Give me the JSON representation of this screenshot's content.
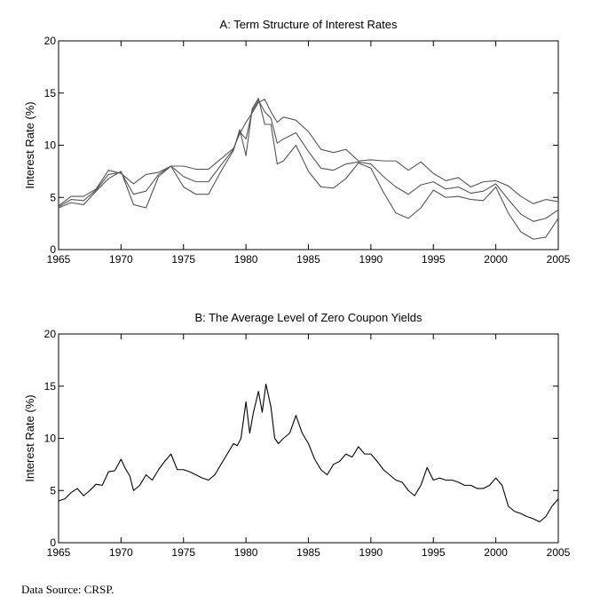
{
  "source_note": "Data Source:  CRSP.",
  "chart_data": [
    {
      "id": "A",
      "type": "line",
      "title": "A: Term Structure of Interest Rates",
      "xlabel": "",
      "ylabel": "Interest Rate (%)",
      "xlim": [
        1965,
        2005
      ],
      "ylim": [
        0,
        20
      ],
      "x_ticks": [
        1965,
        1970,
        1975,
        1980,
        1985,
        1990,
        1995,
        2000,
        2005
      ],
      "y_ticks": [
        0,
        5,
        10,
        15,
        20
      ],
      "grid": false,
      "legend": "none",
      "line_color": "#555555",
      "series": [
        {
          "x": [
            1965,
            1966,
            1967,
            1968,
            1969,
            1970,
            1971,
            1972,
            1973,
            1974,
            1975,
            1976,
            1977,
            1978,
            1979,
            1979.5,
            1980,
            1980.5,
            1981,
            1981.5,
            1982,
            1982.5,
            1983,
            1984,
            1985,
            1986,
            1987,
            1988,
            1989,
            1990,
            1991,
            1992,
            1993,
            1994,
            1995,
            1996,
            1997,
            1998,
            1999,
            2000,
            2001,
            2002,
            2003,
            2004,
            2005
          ],
          "y": [
            4.0,
            4.5,
            4.3,
            5.6,
            6.8,
            7.5,
            4.3,
            4.0,
            7.0,
            8.0,
            6.0,
            5.3,
            5.3,
            7.5,
            9.5,
            11.5,
            9.0,
            13.5,
            14.5,
            12.0,
            12.0,
            8.2,
            8.5,
            10.0,
            7.5,
            6.0,
            5.9,
            6.8,
            8.3,
            7.8,
            5.5,
            3.5,
            3.0,
            4.0,
            5.7,
            5.0,
            5.1,
            4.8,
            4.7,
            6.0,
            3.5,
            1.7,
            1.0,
            1.2,
            3.0
          ]
        },
        {
          "x": [
            1965,
            1966,
            1967,
            1968,
            1969,
            1970,
            1971,
            1972,
            1973,
            1974,
            1975,
            1976,
            1977,
            1978,
            1979,
            1979.5,
            1980,
            1980.5,
            1981,
            1981.5,
            1982,
            1982.5,
            1983,
            1984,
            1985,
            1986,
            1987,
            1988,
            1989,
            1990,
            1991,
            1992,
            1993,
            1994,
            1995,
            1996,
            1997,
            1998,
            1999,
            2000,
            2001,
            2002,
            2003,
            2004,
            2005
          ],
          "y": [
            4.1,
            4.8,
            4.7,
            5.7,
            7.2,
            7.4,
            5.3,
            5.6,
            7.2,
            8.0,
            7.0,
            6.5,
            6.5,
            8.1,
            9.6,
            11.3,
            10.6,
            13.3,
            14.3,
            13.2,
            12.6,
            10.2,
            10.6,
            11.2,
            9.4,
            7.8,
            7.6,
            8.2,
            8.4,
            8.2,
            7.0,
            6.0,
            5.3,
            6.2,
            6.5,
            5.8,
            6.0,
            5.4,
            5.6,
            6.3,
            4.8,
            3.4,
            2.7,
            3.0,
            3.8
          ]
        },
        {
          "x": [
            1965,
            1966,
            1967,
            1968,
            1969,
            1970,
            1971,
            1972,
            1973,
            1974,
            1975,
            1976,
            1977,
            1978,
            1979,
            1979.5,
            1980,
            1980.5,
            1981,
            1981.5,
            1982,
            1982.5,
            1983,
            1984,
            1985,
            1986,
            1987,
            1988,
            1989,
            1990,
            1991,
            1992,
            1993,
            1994,
            1995,
            1996,
            1997,
            1998,
            1999,
            2000,
            2001,
            2002,
            2003,
            2004,
            2005
          ],
          "y": [
            4.2,
            5.1,
            5.1,
            5.8,
            7.6,
            7.3,
            6.3,
            7.2,
            7.4,
            8.0,
            8.0,
            7.7,
            7.7,
            8.7,
            9.7,
            11.1,
            12.2,
            13.1,
            14.1,
            14.4,
            13.2,
            12.2,
            12.7,
            12.4,
            11.3,
            9.6,
            9.3,
            9.6,
            8.5,
            8.6,
            8.5,
            8.5,
            7.6,
            8.4,
            7.3,
            6.6,
            6.9,
            6.0,
            6.5,
            6.6,
            6.1,
            5.1,
            4.4,
            4.8,
            4.6
          ]
        }
      ]
    },
    {
      "id": "B",
      "type": "line",
      "title": "B: The Average Level of Zero Coupon Yields",
      "xlabel": "",
      "ylabel": "Interest Rate (%)",
      "xlim": [
        1965,
        2005
      ],
      "ylim": [
        0,
        20
      ],
      "x_ticks": [
        1965,
        1970,
        1975,
        1980,
        1985,
        1990,
        1995,
        2000,
        2005
      ],
      "y_ticks": [
        0,
        5,
        10,
        15,
        20
      ],
      "grid": false,
      "legend": "none",
      "line_color": "#000000",
      "series": [
        {
          "x": [
            1965,
            1965.5,
            1966,
            1966.5,
            1967,
            1967.5,
            1968,
            1968.5,
            1969,
            1969.5,
            1970,
            1970.3,
            1970.7,
            1971,
            1971.5,
            1972,
            1972.5,
            1973,
            1973.5,
            1974,
            1974.5,
            1975,
            1975.5,
            1976,
            1976.5,
            1977,
            1977.5,
            1978,
            1978.5,
            1979,
            1979.3,
            1979.6,
            1980,
            1980.3,
            1980.6,
            1981,
            1981.3,
            1981.6,
            1982,
            1982.3,
            1982.6,
            1983,
            1983.5,
            1984,
            1984.5,
            1985,
            1985.5,
            1986,
            1986.5,
            1987,
            1987.5,
            1988,
            1988.5,
            1989,
            1989.5,
            1990,
            1990.5,
            1991,
            1991.5,
            1992,
            1992.5,
            1993,
            1993.5,
            1994,
            1994.5,
            1995,
            1995.5,
            1996,
            1996.5,
            1997,
            1997.5,
            1998,
            1998.5,
            1999,
            1999.5,
            2000,
            2000.5,
            2001,
            2001.5,
            2002,
            2002.5,
            2003,
            2003.5,
            2004,
            2004.5,
            2005
          ],
          "y": [
            4.0,
            4.2,
            4.8,
            5.2,
            4.5,
            5.0,
            5.6,
            5.5,
            6.8,
            6.9,
            8.0,
            7.2,
            6.4,
            5.0,
            5.5,
            6.5,
            6.0,
            7.0,
            7.8,
            8.5,
            7.0,
            7.0,
            6.8,
            6.5,
            6.2,
            6.0,
            6.5,
            7.5,
            8.5,
            9.5,
            9.3,
            10.0,
            13.5,
            10.5,
            12.5,
            14.5,
            12.5,
            15.2,
            13.0,
            10.0,
            9.5,
            10.0,
            10.5,
            12.2,
            10.5,
            9.5,
            8.0,
            7.0,
            6.5,
            7.5,
            7.8,
            8.5,
            8.2,
            9.2,
            8.5,
            8.5,
            7.8,
            7.0,
            6.5,
            6.0,
            5.8,
            5.0,
            4.5,
            5.5,
            7.2,
            6.0,
            6.2,
            6.0,
            6.0,
            5.8,
            5.5,
            5.5,
            5.2,
            5.2,
            5.5,
            6.2,
            5.5,
            3.5,
            3.0,
            2.8,
            2.5,
            2.3,
            2.0,
            2.5,
            3.5,
            4.2
          ]
        }
      ]
    }
  ]
}
